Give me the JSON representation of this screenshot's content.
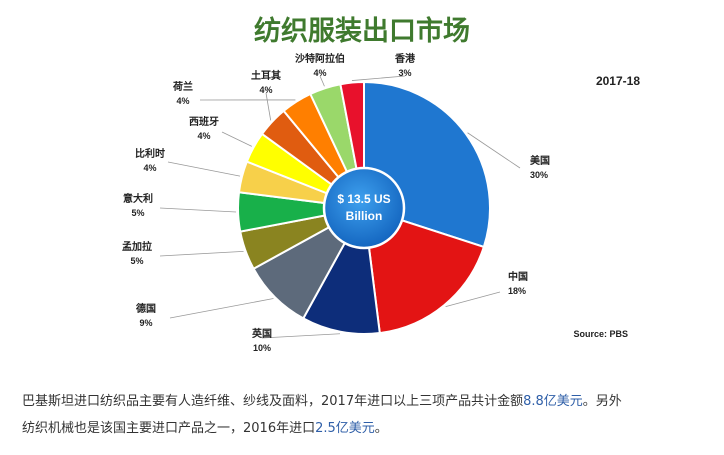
{
  "chart_data": {
    "type": "pie",
    "title": "纺织服装出口市场",
    "subtitle": "2017-18",
    "center_label": [
      "$ 13.5 US",
      "Billion"
    ],
    "source": "Source: PBS",
    "categories": [
      "美国",
      "中国",
      "英国",
      "德国",
      "孟加拉",
      "意大利",
      "比利时",
      "西班牙",
      "土耳其",
      "荷兰",
      "沙特阿拉伯",
      "香港"
    ],
    "values": [
      30,
      18,
      10,
      9,
      5,
      5,
      4,
      4,
      4,
      4,
      4,
      3
    ],
    "value_labels": [
      "30%",
      "18%",
      "10%",
      "9%",
      "5%",
      "5%",
      "4%",
      "4%",
      "4%",
      "4%",
      "4%",
      "3%"
    ],
    "colors": [
      "#1f77d0",
      "#e31414",
      "#0d2d7a",
      "#5d6a7b",
      "#8a8420",
      "#18b04a",
      "#f7d04a",
      "#ffff00",
      "#e05c10",
      "#ff7f00",
      "#9ad86a",
      "#e8112c"
    ],
    "legend": "none"
  },
  "caption": {
    "line1_a": "巴基斯坦进口纺织品主要有人造纤维、纱线及面料，2017年进口以上三项产品共计金额",
    "line1_hl": "8.8亿美元",
    "line1_b": "。另外",
    "line2_a": "纺织机械也是该国主要进口产品之一，2016年进口",
    "line2_hl": "2.5亿美元",
    "line2_b": "。"
  }
}
